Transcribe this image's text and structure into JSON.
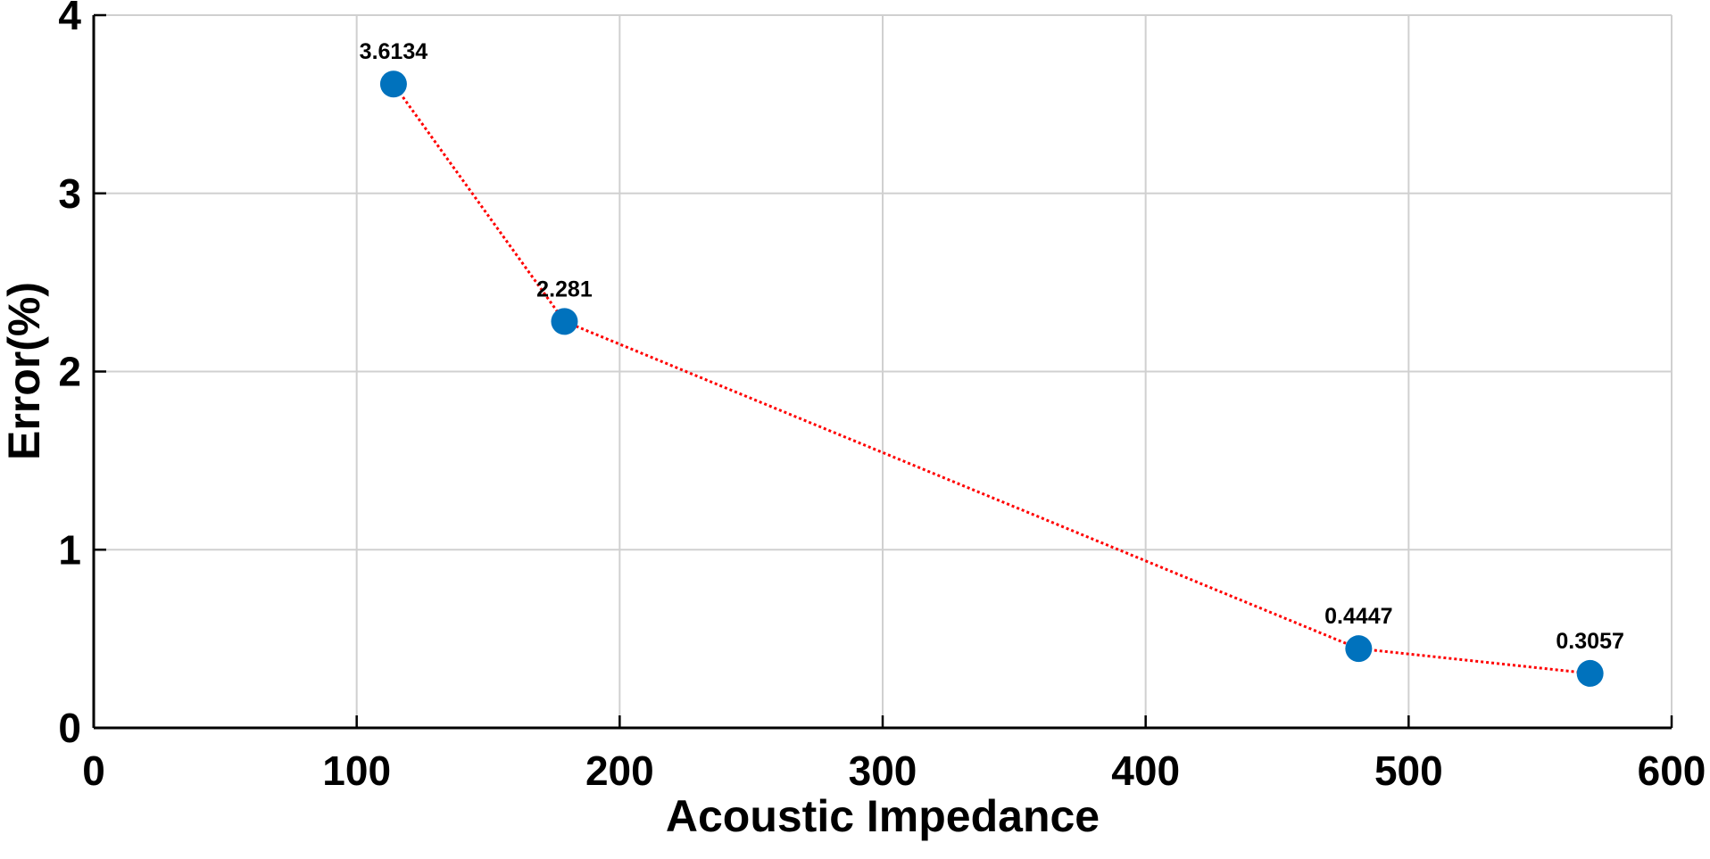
{
  "chart_data": {
    "type": "line",
    "xlabel": "Acoustic Impedance",
    "ylabel": "Error(%)",
    "x": [
      114,
      179,
      481,
      569
    ],
    "values": [
      3.6134,
      2.281,
      0.4447,
      0.3057
    ],
    "line_color": "#ff0000",
    "marker_color": "#0072bd",
    "xlim": [
      0,
      600
    ],
    "xticks": [
      0,
      100,
      200,
      300,
      400,
      500,
      600
    ],
    "ylim": [
      0,
      4
    ],
    "yticks": [
      0,
      1,
      2,
      3,
      4
    ],
    "grid": true
  }
}
